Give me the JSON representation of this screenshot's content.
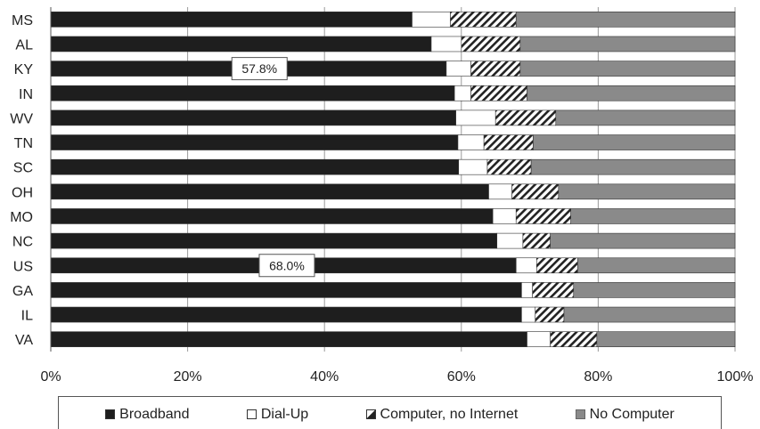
{
  "chart_data": {
    "type": "bar",
    "orientation": "horizontal",
    "stacked": true,
    "categories": [
      "MS",
      "AL",
      "KY",
      "IN",
      "WV",
      "TN",
      "SC",
      "OH",
      "MO",
      "NC",
      "US",
      "GA",
      "IL",
      "VA"
    ],
    "series": [
      {
        "name": "Broadband",
        "color": "#1e1e1e",
        "pattern": "solid",
        "values": [
          52.8,
          55.6,
          57.8,
          59.0,
          59.2,
          59.5,
          59.6,
          64.0,
          64.6,
          65.2,
          68.0,
          68.8,
          68.8,
          69.6
        ]
      },
      {
        "name": "Dial-Up",
        "color": "#ffffff",
        "pattern": "solid",
        "values": [
          5.6,
          4.4,
          3.6,
          2.4,
          5.8,
          3.8,
          4.2,
          3.4,
          3.4,
          3.8,
          3.0,
          1.6,
          2.0,
          3.4
        ]
      },
      {
        "name": "Computer, no Internet",
        "color": "#222222",
        "pattern": "hatch",
        "values": [
          9.6,
          8.6,
          7.2,
          8.2,
          8.8,
          7.2,
          6.4,
          6.8,
          8.0,
          4.0,
          6.0,
          6.0,
          4.2,
          6.8
        ]
      },
      {
        "name": "No Computer",
        "color": "#8a8a8a",
        "pattern": "solid",
        "values": [
          32.0,
          31.4,
          31.4,
          30.4,
          26.2,
          29.5,
          29.8,
          25.8,
          24.0,
          27.0,
          23.0,
          23.6,
          25.0,
          20.2
        ]
      }
    ],
    "annotations": [
      {
        "category": "KY",
        "text": "57.8%",
        "x": 30.5
      },
      {
        "category": "US",
        "text": "68.0%",
        "x": 34.5
      }
    ],
    "xaxis": {
      "ticks": [
        0,
        20,
        40,
        60,
        80,
        100
      ],
      "tick_labels": [
        "0%",
        "20%",
        "40%",
        "60%",
        "80%",
        "100%"
      ],
      "range": [
        0,
        100
      ]
    },
    "title": "",
    "xlabel": "",
    "ylabel": "",
    "grid": "vertical",
    "legend_position": "bottom"
  },
  "legend": {
    "broadband": "Broadband",
    "dialup": "Dial-Up",
    "nointernet": "Computer, no Internet",
    "nocomputer": "No Computer"
  }
}
